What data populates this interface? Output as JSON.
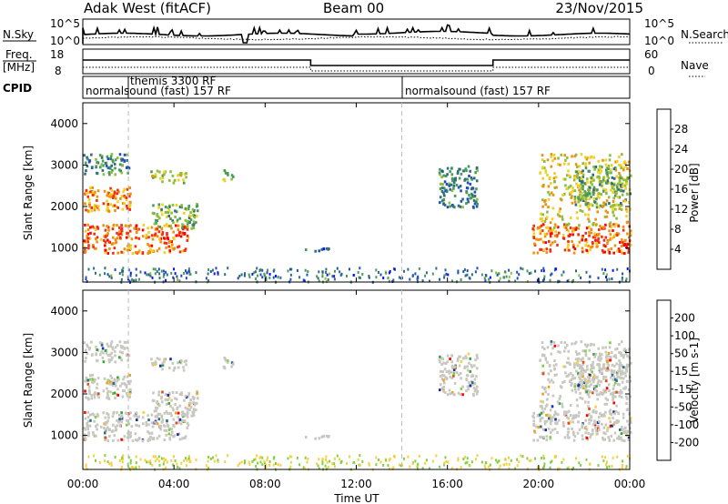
{
  "header": {
    "station": "Adak West (fitACF)",
    "beam": "Beam 00",
    "date": "23/Nov/2015"
  },
  "chart_data": {
    "type": "heatmap",
    "x_label": "Time UT",
    "x_ticks": [
      "00:00",
      "04:00",
      "08:00",
      "12:00",
      "16:00",
      "20:00",
      "00:00"
    ],
    "x_range_hours": [
      0,
      24
    ],
    "y_label": "Slant Range [km]",
    "y_ticks": [
      1000,
      2000,
      3000,
      4000
    ],
    "y_range_km": [
      180,
      4500
    ],
    "dashed_time_markers_h": [
      2.0,
      14.0
    ],
    "strip_nsky": {
      "left_label": "N.Sky",
      "right_label": "N.Search",
      "left_ticks": [
        "10^5",
        "10^0"
      ],
      "right_ticks": [
        "10^5",
        "10^0"
      ]
    },
    "strip_freq": {
      "left_label_1": "Freq.",
      "left_label_2": "[MHz]",
      "right_label": "Nave",
      "left_ticks": [
        "18",
        "8"
      ],
      "right_ticks": [
        "60",
        "0"
      ]
    },
    "cpid": {
      "label": "CPID",
      "segments": [
        {
          "start_h": 0.0,
          "text": "normalsound (fast) 157 RF"
        },
        {
          "start_h": 2.0,
          "text": "themis 3300 RF"
        },
        {
          "start_h": 14.0,
          "text": "normalsound (fast) 157 RF"
        }
      ]
    },
    "power_colorbar": {
      "label": "Power [dB]",
      "ticks": [
        4,
        8,
        12,
        16,
        20,
        24,
        28
      ],
      "range": [
        0,
        32
      ],
      "colors": [
        "#1010ff",
        "#2050b8",
        "#2f6e7e",
        "#4a9a5a",
        "#8cbf3c",
        "#f0d020",
        "#f09010",
        "#f03010",
        "#ff0000"
      ]
    },
    "velocity_colorbar": {
      "label": "Velocity [m s-1]",
      "ticks": [
        200,
        100,
        50,
        15,
        -15,
        -50,
        -100,
        -200
      ],
      "colors": [
        "#1a2fa8",
        "#2c6f8a",
        "#3ea53a",
        "#80d040",
        "#c8c8c0",
        "#f5d040",
        "#f0a020",
        "#e05010",
        "#ff0000"
      ]
    },
    "power_regions": [
      {
        "name": "main-band-early",
        "t0": 0.0,
        "t1": 4.6,
        "r0": 900,
        "r1": 1600,
        "level": 26
      },
      {
        "name": "main-band-early-edge",
        "t0": 3.0,
        "t1": 5.0,
        "r0": 1500,
        "r1": 2100,
        "level": 14
      },
      {
        "name": "early-upper-band",
        "t0": 0.0,
        "t1": 2.2,
        "r0": 1900,
        "r1": 2500,
        "level": 24
      },
      {
        "name": "early-cluster-2700",
        "t0": 2.9,
        "t1": 4.5,
        "r0": 2600,
        "r1": 2900,
        "level": 17
      },
      {
        "name": "early-scatter-3000",
        "t0": 0.0,
        "t1": 2.0,
        "r0": 2800,
        "r1": 3300,
        "level": 10
      },
      {
        "name": "patch-0630",
        "t0": 6.1,
        "t1": 6.6,
        "r0": 2600,
        "r1": 2900,
        "level": 16
      },
      {
        "name": "patch-1000",
        "t0": 9.7,
        "t1": 11.0,
        "r0": 950,
        "r1": 1050,
        "level": 6
      },
      {
        "name": "afternoon-streaks",
        "t0": 15.6,
        "t1": 17.3,
        "r0": 2000,
        "r1": 3000,
        "level": 10
      },
      {
        "name": "evening-main-band",
        "t0": 19.7,
        "t1": 24.0,
        "r0": 900,
        "r1": 1600,
        "level": 26
      },
      {
        "name": "evening-streak",
        "t0": 20.0,
        "t1": 24.0,
        "r0": 1500,
        "r1": 3300,
        "level": 20
      },
      {
        "name": "evening-upper",
        "t0": 21.5,
        "t1": 24.0,
        "r0": 2000,
        "r1": 3000,
        "level": 14
      }
    ],
    "ground_noise_level": 8
  }
}
